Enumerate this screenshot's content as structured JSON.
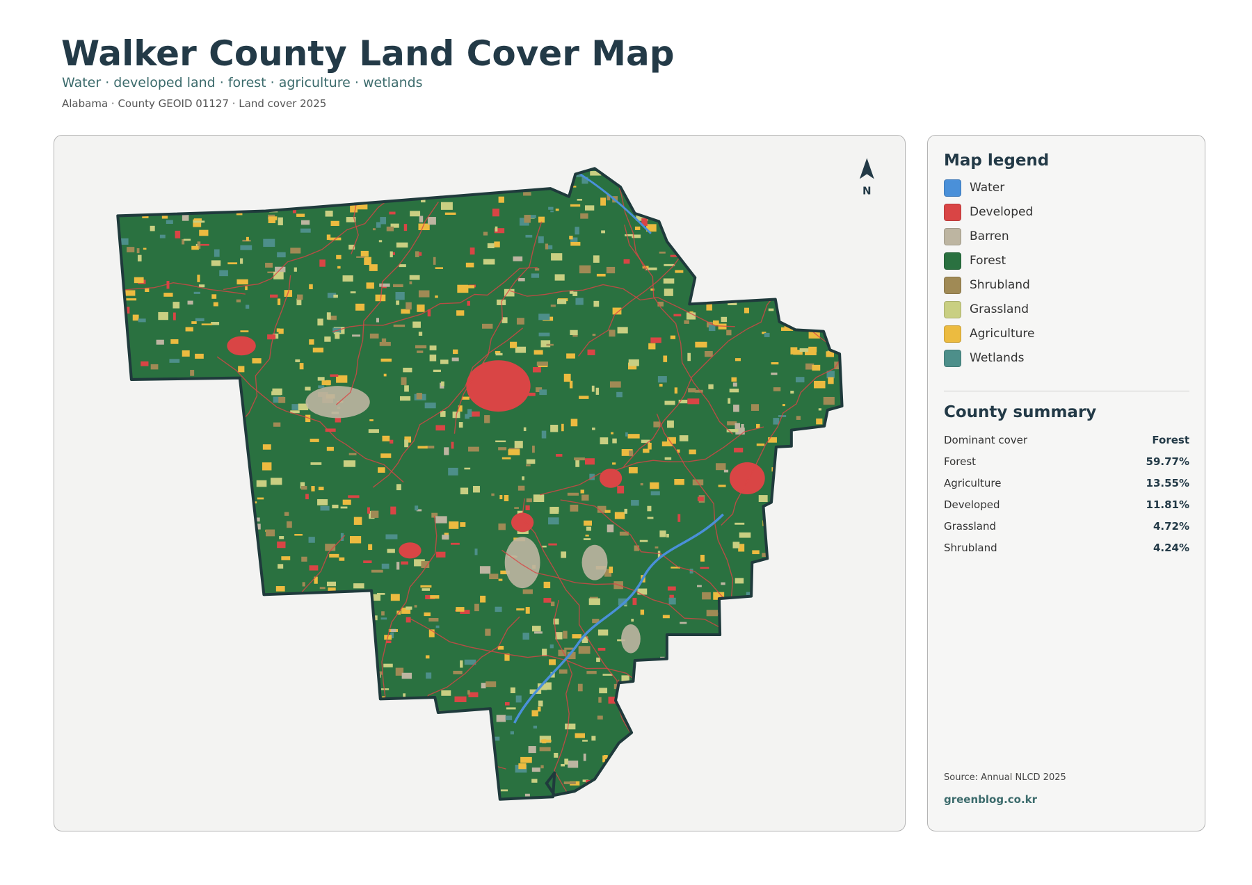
{
  "header": {
    "title": "Walker County Land Cover Map",
    "subtitle": "Water · developed land · forest · agriculture · wetlands",
    "meta": "Alabama · County GEOID 01127 · Land cover 2025"
  },
  "map": {
    "north": "N"
  },
  "legend": {
    "title": "Map legend",
    "items": [
      {
        "label": "Water",
        "color": "#4a90d9"
      },
      {
        "label": "Developed",
        "color": "#d94545"
      },
      {
        "label": "Barren",
        "color": "#bdb5a1"
      },
      {
        "label": "Forest",
        "color": "#2a7140"
      },
      {
        "label": "Shrubland",
        "color": "#a08a55"
      },
      {
        "label": "Grassland",
        "color": "#c9cf82"
      },
      {
        "label": "Agriculture",
        "color": "#ecbb40"
      },
      {
        "label": "Wetlands",
        "color": "#4d8f8a"
      }
    ]
  },
  "summary": {
    "title": "County summary",
    "rows": [
      [
        "Dominant cover",
        "Forest"
      ],
      [
        "Forest",
        "59.77%"
      ],
      [
        "Agriculture",
        "13.55%"
      ],
      [
        "Developed",
        "11.81%"
      ],
      [
        "Grassland",
        "4.72%"
      ],
      [
        "Shrubland",
        "4.24%"
      ]
    ]
  },
  "footer": {
    "source": "Source: Annual NLCD 2025",
    "brand": "greenblog.co.kr"
  }
}
